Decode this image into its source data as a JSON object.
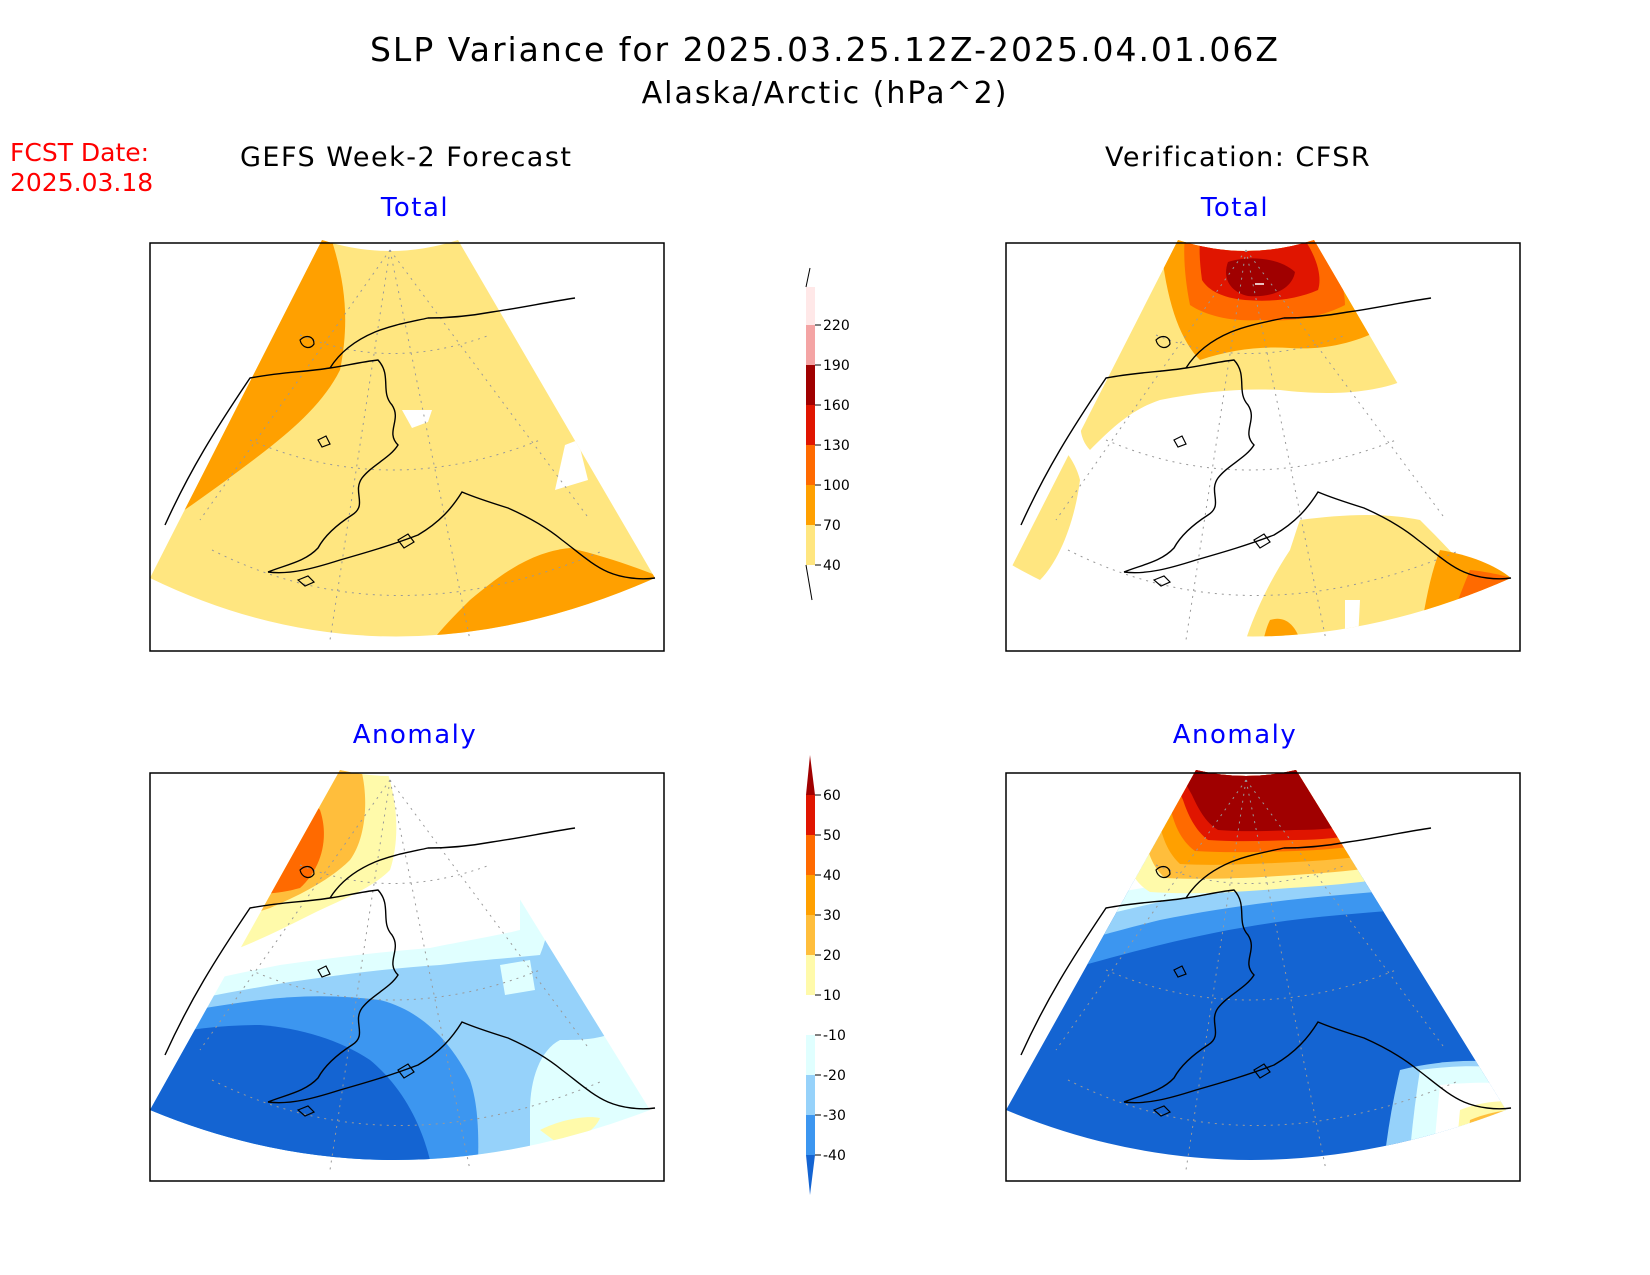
{
  "header": {
    "title": "SLP Variance for 2025.03.25.12Z-2025.04.01.06Z",
    "subtitle": "Alaska/Arctic (hPa^2)",
    "fcst_line1": "FCST Date:",
    "fcst_line2": "2025.03.18"
  },
  "columns": {
    "left": "GEFS Week-2 Forecast",
    "right": "Verification: CFSR"
  },
  "panels": {
    "top_left": "Total",
    "top_right": "Total",
    "bottom_left": "Anomaly",
    "bottom_right": "Anomaly"
  },
  "colorbar_total": {
    "labels": [
      "220",
      "190",
      "160",
      "130",
      "100",
      "70",
      "40"
    ],
    "colors": [
      "#ffe8e8",
      "#f4a4a4",
      "#a00000",
      "#e01500",
      "#ff6a00",
      "#ffa000",
      "#ffe680"
    ]
  },
  "colorbar_anomaly": {
    "labels": [
      "60",
      "50",
      "40",
      "30",
      "20",
      "10",
      "-10",
      "-20",
      "-30",
      "-40"
    ],
    "colors": [
      "#a00000",
      "#e01500",
      "#ff6a00",
      "#ffa000",
      "#ffbe3c",
      "#fffaaa",
      "#ffffff",
      "#e0ffff",
      "#96d2fa",
      "#3c96f0",
      "#1464d2"
    ]
  },
  "palette": {
    "yellow": "#ffe680",
    "orange": "#ffa000",
    "orange_dark": "#ff6a00",
    "red": "#e01500",
    "dark_red": "#a00000",
    "pale_yellow": "#fffaaa",
    "light_orange": "#ffbe3c",
    "pale_cyan": "#e0ffff",
    "light_blue": "#96d2fa",
    "mid_blue": "#3c96f0",
    "blue": "#1464d2"
  }
}
